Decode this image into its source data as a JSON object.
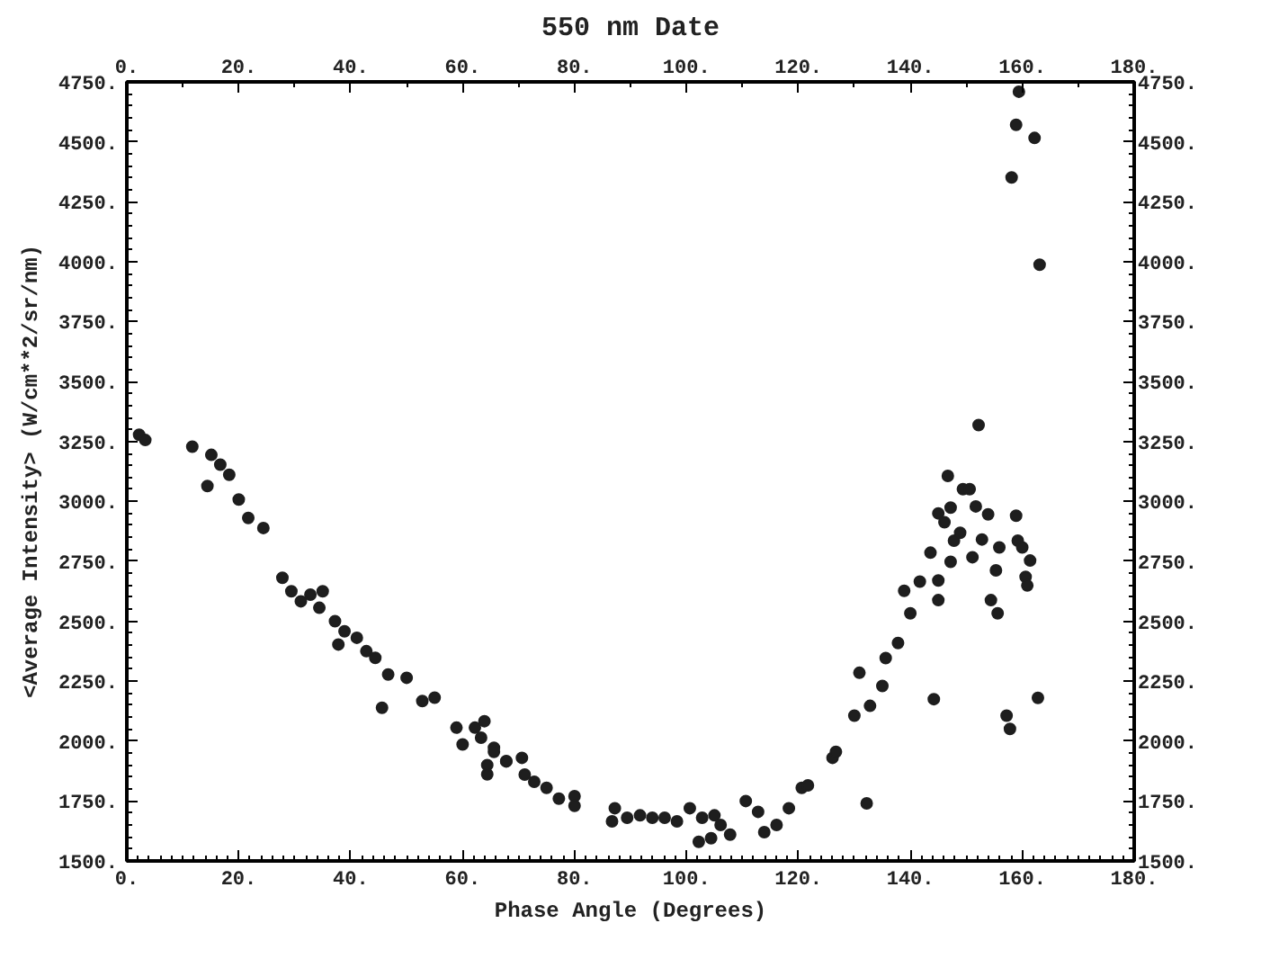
{
  "chart_data": {
    "type": "scatter",
    "title": "550 nm Date",
    "xlabel": "Phase Angle (Degrees)",
    "ylabel": "<Average Intensity> (W/cm**2/sr/nm)",
    "marker": "circle",
    "grid": false,
    "xlim": [
      0,
      180
    ],
    "xticks": [
      {
        "value": 0,
        "label": "0."
      },
      {
        "value": 20,
        "label": "20."
      },
      {
        "value": 40,
        "label": "40."
      },
      {
        "value": 60,
        "label": "60."
      },
      {
        "value": 80,
        "label": "80."
      },
      {
        "value": 100,
        "label": "100."
      },
      {
        "value": 120,
        "label": "120."
      },
      {
        "value": 140,
        "label": "140."
      },
      {
        "value": 160,
        "label": "160."
      },
      {
        "value": 180,
        "label": "180."
      }
    ],
    "x2lim": [
      0,
      180
    ],
    "x2ticks": [
      {
        "value": 0,
        "label": "0."
      },
      {
        "value": 20,
        "label": "20."
      },
      {
        "value": 40,
        "label": "40."
      },
      {
        "value": 60,
        "label": "60."
      },
      {
        "value": 80,
        "label": "80."
      },
      {
        "value": 100,
        "label": "100."
      },
      {
        "value": 120,
        "label": "120."
      },
      {
        "value": 140,
        "label": "140."
      },
      {
        "value": 160,
        "label": "160."
      },
      {
        "value": 180,
        "label": "180."
      }
    ],
    "ylim": [
      1500,
      4750
    ],
    "yticks": [
      {
        "value": 1500,
        "label": "1500."
      },
      {
        "value": 1750,
        "label": "1750."
      },
      {
        "value": 2000,
        "label": "2000."
      },
      {
        "value": 2250,
        "label": "2250."
      },
      {
        "value": 2500,
        "label": "2500."
      },
      {
        "value": 2750,
        "label": "2750."
      },
      {
        "value": 3000,
        "label": "3000."
      },
      {
        "value": 3250,
        "label": "3250."
      },
      {
        "value": 3500,
        "label": "3500."
      },
      {
        "value": 3750,
        "label": "3750."
      },
      {
        "value": 4000,
        "label": "4000."
      },
      {
        "value": 4250,
        "label": "4250."
      },
      {
        "value": 4500,
        "label": "4500."
      },
      {
        "value": 4750,
        "label": "4750."
      }
    ],
    "y2lim": [
      1500,
      4750
    ],
    "y2ticks": [
      {
        "value": 1500,
        "label": "1500."
      },
      {
        "value": 1750,
        "label": "1750."
      },
      {
        "value": 2000,
        "label": "2000."
      },
      {
        "value": 2250,
        "label": "2250."
      },
      {
        "value": 2500,
        "label": "2500."
      },
      {
        "value": 2750,
        "label": "2750."
      },
      {
        "value": 3000,
        "label": "3000."
      },
      {
        "value": 3250,
        "label": "3250."
      },
      {
        "value": 3500,
        "label": "3500."
      },
      {
        "value": 3750,
        "label": "3750."
      },
      {
        "value": 4000,
        "label": "4000."
      },
      {
        "value": 4250,
        "label": "4250."
      },
      {
        "value": 4500,
        "label": "4500."
      },
      {
        "value": 4750,
        "label": "4750."
      }
    ],
    "series": [
      {
        "color": "#1e1e1e",
        "x": [
          2.2,
          3.3,
          11.7,
          15.1,
          16.7,
          18.3,
          14.4,
          20,
          21.7,
          24.4,
          27.8,
          29.4,
          31.1,
          32.8,
          35,
          34.4,
          37.2,
          38.9,
          41.1,
          37.8,
          42.8,
          44.4,
          46.7,
          50,
          52.8,
          55,
          45.6,
          58.9,
          62.2,
          63.9,
          60,
          63.3,
          65.6,
          64.4,
          67.8,
          65.6,
          64.4,
          67.8,
          70.6,
          71.1,
          72.8,
          75,
          77.2,
          80,
          80,
          87.2,
          86.7,
          89.4,
          91.7,
          93.9,
          96.1,
          98.3,
          100.6,
          102.8,
          105,
          106.1,
          102.2,
          104.4,
          107.8,
          110.6,
          112.8,
          113.9,
          116.1,
          118.3,
          120.6,
          121.7,
          126.1,
          159.4,
          158.9,
          162.2,
          158.1,
          163.1,
          152.2,
          146.7,
          149.4,
          150.6,
          151.7,
          153.9,
          158.9,
          145,
          147.2,
          146.1,
          148.9,
          147.8,
          152.8,
          155.9,
          159.2,
          160,
          151.1,
          147.2,
          143.6,
          161.4,
          160.6,
          160.9,
          155.3,
          141.7,
          138.9,
          145,
          145,
          154.4,
          155.6,
          140,
          137.8,
          135.6,
          135,
          130.9,
          132.8,
          130,
          144.2,
          157.2,
          157.8,
          162.8,
          126.7,
          132.2
        ],
        "values": [
          3278,
          3256,
          3228,
          3194,
          3153,
          3111,
          3064,
          3008,
          2931,
          2889,
          2681,
          2625,
          2583,
          2611,
          2625,
          2556,
          2500,
          2458,
          2431,
          2403,
          2375,
          2347,
          2278,
          2264,
          2167,
          2181,
          2139,
          2056,
          2056,
          2083,
          1986,
          2014,
          1972,
          1861,
          1917,
          1955,
          1900,
          1915,
          1930,
          1860,
          1830,
          1805,
          1760,
          1770,
          1730,
          1720,
          1665,
          1680,
          1690,
          1680,
          1680,
          1665,
          1720,
          1680,
          1690,
          1650,
          1580,
          1595,
          1610,
          1750,
          1705,
          1620,
          1650,
          1720,
          1805,
          1815,
          1930,
          4709,
          4571,
          4516,
          4351,
          3987,
          3318,
          3106,
          3051,
          3051,
          2979,
          2946,
          2940,
          2950,
          2974,
          2913,
          2869,
          2836,
          2841,
          2808,
          2836,
          2808,
          2767,
          2748,
          2786,
          2753,
          2685,
          2649,
          2712,
          2665,
          2627,
          2670,
          2588,
          2588,
          2533,
          2533,
          2409,
          2346,
          2230,
          2285,
          2147,
          2106,
          2175,
          2106,
          2051,
          2180,
          1955,
          1740
        ]
      }
    ]
  }
}
